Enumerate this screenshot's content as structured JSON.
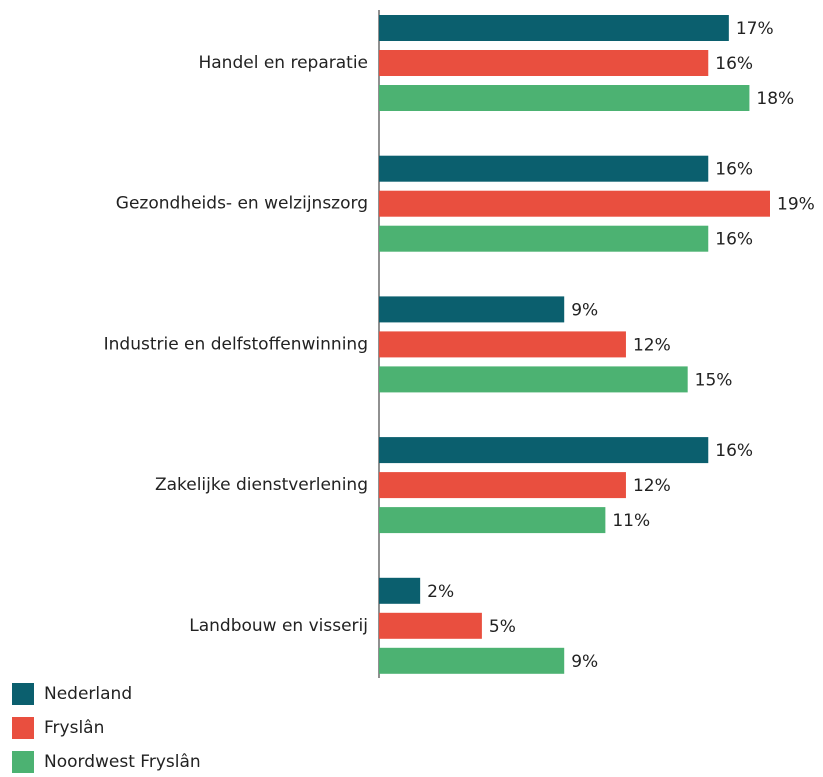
{
  "chart_data": {
    "type": "bar",
    "orientation": "horizontal",
    "categories": [
      "Handel en reparatie",
      "Gezondheids- en welzijnszorg",
      "Industrie en delfstoffenwinning",
      "Zakelijke dienstverlening",
      "Landbouw en visserij"
    ],
    "series": [
      {
        "name": "Nederland",
        "color": "#0b5f6e",
        "values": [
          17,
          16,
          9,
          16,
          2
        ],
        "value_labels": [
          "17%",
          "16%",
          "9%",
          "16%",
          "2%"
        ]
      },
      {
        "name": "Fryslân",
        "color": "#e94f3f",
        "values": [
          16,
          19,
          12,
          12,
          5
        ],
        "value_labels": [
          "16%",
          "19%",
          "12%",
          "12%",
          "5%"
        ]
      },
      {
        "name": "Noordwest Fryslân",
        "color": "#4cb272",
        "values": [
          18,
          16,
          15,
          11,
          9
        ],
        "value_labels": [
          "18%",
          "16%",
          "15%",
          "11%",
          "9%"
        ]
      }
    ],
    "legend": "bottom-left"
  }
}
